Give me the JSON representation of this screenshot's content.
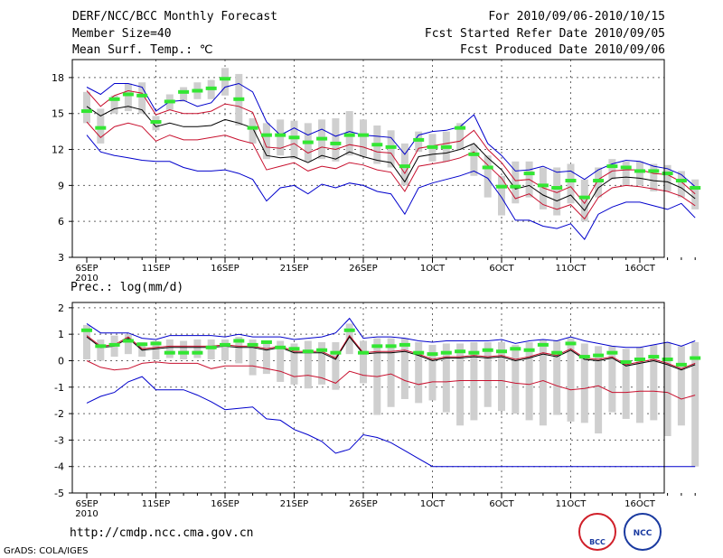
{
  "header": {
    "title": "DERF/NCC/BCC Monthly Forecast",
    "member_size": "Member Size=40",
    "variable": "Mean Surf. Temp.: ℃",
    "period": "For 2010/09/06-2010/10/15",
    "refer_date": "Fcst Started Refer Date 2010/09/05",
    "produced_date": "Fcst Produced Date 2010/09/06"
  },
  "footer": {
    "url": "http://cmdp.ncc.cma.gov.cn",
    "credit": "GrADS: COLA/IGES",
    "logo1_text": "BCC",
    "logo2_text": "NCC"
  },
  "colors": {
    "bar": "#cfcfcf",
    "mean": "#000000",
    "sd": "#c8102e",
    "range": "#0000cc",
    "ensemble": "#33e633"
  },
  "chart_data": [
    {
      "type": "line",
      "title": "Mean Surf. Temp.: ℃",
      "x_labels": [
        "6SEP\n2010",
        "11SEP",
        "16SEP",
        "21SEP",
        "26SEP",
        "1OCT",
        "6OCT",
        "11OCT",
        "16OCT"
      ],
      "x_label_days": [
        1,
        6,
        11,
        16,
        21,
        26,
        31,
        36,
        41
      ],
      "yticks": [
        3,
        6,
        9,
        12,
        15,
        18
      ],
      "ylim": [
        3,
        19.5
      ],
      "series": [
        {
          "name": "max",
          "values": [
            13.2,
            11.8,
            11.5,
            11.3,
            11.1,
            11.0,
            11.0,
            10.5,
            10.2,
            10.2,
            10.3,
            10.0,
            9.5,
            7.7,
            8.8,
            9.0,
            8.3,
            9.1,
            8.8,
            9.2,
            9.0,
            8.5,
            8.3,
            6.6,
            8.8,
            9.2,
            9.5,
            9.8,
            10.2,
            9.6,
            8.0,
            6.1,
            6.1,
            5.6,
            5.4,
            5.8,
            4.5,
            6.6,
            7.2,
            7.6,
            7.6,
            7.3,
            7.0,
            7.5,
            6.3
          ]
        },
        {
          "name": "mean-sd",
          "values": [
            14.3,
            13.0,
            13.9,
            14.2,
            13.9,
            12.7,
            13.2,
            12.8,
            12.8,
            13.0,
            13.2,
            12.8,
            12.5,
            10.3,
            10.6,
            10.9,
            10.2,
            10.6,
            10.4,
            10.9,
            10.7,
            10.3,
            10.1,
            8.5,
            10.6,
            10.8,
            11.0,
            11.3,
            11.8,
            10.7,
            9.6,
            7.9,
            8.3,
            7.4,
            7.0,
            7.4,
            6.2,
            8.0,
            8.8,
            9.0,
            8.9,
            8.7,
            8.5,
            8.1,
            7.3
          ]
        },
        {
          "name": "ens-mean",
          "values": [
            15.6,
            14.8,
            15.4,
            15.6,
            15.3,
            13.9,
            14.2,
            13.9,
            13.9,
            14.0,
            14.5,
            14.2,
            13.8,
            11.5,
            11.3,
            11.4,
            10.9,
            11.5,
            11.2,
            11.8,
            11.4,
            11.1,
            10.9,
            9.3,
            11.4,
            11.6,
            11.7,
            12.0,
            12.5,
            11.3,
            10.3,
            8.7,
            9.0,
            8.2,
            7.7,
            8.2,
            6.9,
            8.8,
            9.6,
            9.7,
            9.6,
            9.4,
            9.3,
            8.8,
            7.9
          ]
        },
        {
          "name": "mean+sd",
          "values": [
            16.9,
            15.6,
            16.5,
            16.9,
            16.7,
            14.9,
            15.3,
            15.0,
            15.0,
            15.2,
            15.8,
            15.6,
            15.1,
            12.2,
            12.1,
            12.5,
            11.7,
            12.2,
            12.0,
            12.4,
            12.2,
            11.8,
            11.7,
            10.0,
            12.1,
            12.3,
            12.5,
            12.7,
            13.6,
            12.0,
            10.9,
            9.4,
            9.5,
            8.8,
            8.4,
            8.9,
            7.5,
            9.5,
            10.2,
            10.3,
            10.3,
            10.0,
            9.9,
            9.3,
            8.3
          ]
        },
        {
          "name": "min",
          "values": [
            17.2,
            16.6,
            17.5,
            17.5,
            17.2,
            15.2,
            16.0,
            16.1,
            15.6,
            15.9,
            17.2,
            17.5,
            16.8,
            14.3,
            13.2,
            13.8,
            13.2,
            13.7,
            13.1,
            13.5,
            13.2,
            13.1,
            13.0,
            11.6,
            13.2,
            13.5,
            13.6,
            13.9,
            14.9,
            12.5,
            11.5,
            10.2,
            10.3,
            10.6,
            10.1,
            10.2,
            9.5,
            10.3,
            10.8,
            11.1,
            11.0,
            10.6,
            10.4,
            9.9,
            8.9
          ]
        },
        {
          "name": "member",
          "values": [
            15.2,
            13.8,
            16.2,
            16.6,
            16.5,
            14.3,
            16.0,
            16.8,
            16.9,
            17.1,
            17.9,
            16.2,
            13.8,
            13.2,
            13.2,
            13.0,
            12.6,
            12.9,
            12.5,
            13.2,
            13.2,
            12.4,
            12.2,
            10.6,
            12.8,
            12.2,
            12.2,
            13.8,
            11.6,
            10.5,
            8.9,
            8.9,
            10.0,
            9.0,
            8.8,
            9.4,
            8.0,
            9.4,
            10.6,
            10.5,
            10.2,
            10.2,
            10.0,
            9.4,
            8.8
          ]
        },
        {
          "name": "box-high",
          "values": [
            16.8,
            15.4,
            16.5,
            17.5,
            17.6,
            14.8,
            16.6,
            17.2,
            17.6,
            17.8,
            18.8,
            18.3,
            14.6,
            14.2,
            14.5,
            14.4,
            14.2,
            14.5,
            14.6,
            15.2,
            14.5,
            14.0,
            13.6,
            12.5,
            13.5,
            13.3,
            13.5,
            14.2,
            12.4,
            11.5,
            9.8,
            11.0,
            11.0,
            10.5,
            10.5,
            10.8,
            9.5,
            10.5,
            11.2,
            11.0,
            11.0,
            10.8,
            10.7,
            10.2,
            9.5
          ]
        },
        {
          "name": "box-low",
          "values": [
            14.2,
            12.5,
            15.0,
            15.2,
            15.0,
            13.6,
            15.3,
            16.0,
            16.2,
            16.2,
            16.5,
            14.0,
            12.5,
            11.2,
            11.5,
            11.2,
            11.0,
            11.2,
            11.0,
            11.5,
            11.4,
            10.8,
            10.5,
            9.0,
            11.8,
            11.0,
            11.0,
            12.0,
            9.8,
            8.0,
            6.5,
            7.5,
            8.0,
            7.0,
            6.5,
            7.5,
            6.0,
            8.0,
            9.5,
            9.0,
            9.0,
            8.5,
            8.5,
            8.0,
            7.0
          ]
        }
      ]
    },
    {
      "type": "line",
      "title": "Prec.: log(mm/d)",
      "x_labels": [
        "6SEP\n2010",
        "11SEP",
        "16SEP",
        "21SEP",
        "26SEP",
        "1OCT",
        "6OCT",
        "11OCT",
        "16OCT"
      ],
      "x_label_days": [
        1,
        6,
        11,
        16,
        21,
        26,
        31,
        36,
        41
      ],
      "yticks": [
        -5,
        -4,
        -3,
        -2,
        -1,
        0,
        1,
        2
      ],
      "ylim": [
        -5,
        2.2
      ],
      "series": [
        {
          "name": "min",
          "values": [
            -1.6,
            -1.35,
            -1.2,
            -0.8,
            -0.6,
            -1.1,
            -1.1,
            -1.1,
            -1.3,
            -1.55,
            -1.85,
            -1.8,
            -1.75,
            -2.2,
            -2.25,
            -2.6,
            -2.8,
            -3.05,
            -3.5,
            -3.35,
            -2.8,
            -2.9,
            -3.1,
            -3.4,
            -3.7,
            -4.0,
            -4.0,
            -4.0,
            -4.0,
            -4.0,
            -4.0,
            -4.0,
            -4.0,
            -4.0,
            -4.0,
            -4.0,
            -4.0,
            -4.0,
            -4.0,
            -4.0,
            -4.0,
            -4.0,
            -4.0,
            -4.0,
            -4.0
          ]
        },
        {
          "name": "mean-sd",
          "values": [
            0.0,
            -0.25,
            -0.35,
            -0.3,
            -0.1,
            -0.05,
            -0.1,
            -0.1,
            -0.1,
            -0.3,
            -0.2,
            -0.2,
            -0.2,
            -0.3,
            -0.4,
            -0.6,
            -0.55,
            -0.65,
            -0.85,
            -0.4,
            -0.55,
            -0.6,
            -0.5,
            -0.75,
            -0.9,
            -0.8,
            -0.8,
            -0.75,
            -0.75,
            -0.75,
            -0.75,
            -0.85,
            -0.9,
            -0.75,
            -0.95,
            -1.1,
            -1.05,
            -0.95,
            -1.2,
            -1.2,
            -1.15,
            -1.15,
            -1.2,
            -1.45,
            -1.3
          ]
        },
        {
          "name": "ens-mean",
          "values": [
            0.9,
            0.5,
            0.55,
            0.85,
            0.4,
            0.45,
            0.5,
            0.5,
            0.5,
            0.5,
            0.55,
            0.5,
            0.5,
            0.4,
            0.5,
            0.3,
            0.3,
            0.3,
            0.05,
            0.9,
            0.25,
            0.3,
            0.3,
            0.35,
            0.2,
            0.0,
            0.1,
            0.1,
            0.15,
            0.1,
            0.15,
            0.0,
            0.1,
            0.25,
            0.15,
            0.4,
            0.05,
            0.0,
            0.1,
            -0.2,
            -0.1,
            0.0,
            -0.15,
            -0.35,
            -0.15
          ]
        },
        {
          "name": "mean+sd",
          "values": [
            0.95,
            0.55,
            0.6,
            0.9,
            0.45,
            0.5,
            0.55,
            0.55,
            0.55,
            0.55,
            0.6,
            0.55,
            0.55,
            0.45,
            0.55,
            0.35,
            0.35,
            0.35,
            0.1,
            0.95,
            0.3,
            0.35,
            0.35,
            0.4,
            0.25,
            0.05,
            0.15,
            0.15,
            0.2,
            0.15,
            0.2,
            0.05,
            0.15,
            0.3,
            0.2,
            0.45,
            0.1,
            0.05,
            0.15,
            -0.15,
            -0.05,
            0.05,
            -0.1,
            -0.3,
            -0.1
          ]
        },
        {
          "name": "max",
          "values": [
            1.4,
            1.05,
            1.05,
            1.05,
            0.85,
            0.8,
            0.95,
            0.95,
            0.95,
            0.95,
            0.9,
            1.0,
            0.9,
            0.9,
            0.9,
            0.8,
            0.85,
            0.9,
            1.05,
            1.6,
            0.85,
            0.9,
            0.9,
            0.85,
            0.75,
            0.7,
            0.75,
            0.75,
            0.75,
            0.75,
            0.8,
            0.65,
            0.75,
            0.8,
            0.75,
            0.9,
            0.75,
            0.65,
            0.55,
            0.5,
            0.5,
            0.6,
            0.7,
            0.55,
            0.75
          ]
        },
        {
          "name": "member",
          "values": [
            1.15,
            0.55,
            0.6,
            0.75,
            0.62,
            0.65,
            0.3,
            0.3,
            0.3,
            0.5,
            0.6,
            0.75,
            0.6,
            0.7,
            0.5,
            0.45,
            0.35,
            0.4,
            0.3,
            1.15,
            0.3,
            0.55,
            0.55,
            0.6,
            0.3,
            0.25,
            0.3,
            0.35,
            0.3,
            0.4,
            0.35,
            0.45,
            0.4,
            0.6,
            0.3,
            0.65,
            0.15,
            0.2,
            0.3,
            -0.05,
            0.05,
            0.15,
            0.05,
            -0.15,
            0.1
          ]
        },
        {
          "name": "box-high",
          "values": [
            1.35,
            0.8,
            0.95,
            1.0,
            0.7,
            0.75,
            0.8,
            0.75,
            0.8,
            0.8,
            0.8,
            0.9,
            0.8,
            0.75,
            0.75,
            0.65,
            0.75,
            0.7,
            0.7,
            1.4,
            0.75,
            0.85,
            0.85,
            0.85,
            0.7,
            0.6,
            0.65,
            0.65,
            0.7,
            0.7,
            0.7,
            0.6,
            0.7,
            0.8,
            0.75,
            0.85,
            0.65,
            0.55,
            0.55,
            0.45,
            0.5,
            0.6,
            0.7,
            0.55,
            0.7
          ]
        },
        {
          "name": "box-low",
          "values": [
            0.05,
            0.0,
            0.15,
            0.25,
            0.15,
            0.05,
            0.1,
            0.05,
            0.1,
            0.05,
            0.0,
            -0.1,
            -0.55,
            -0.5,
            -0.8,
            -0.9,
            -1.05,
            -0.9,
            -1.1,
            0.25,
            -0.85,
            -2.05,
            -1.75,
            -1.45,
            -1.6,
            -1.5,
            -1.95,
            -2.45,
            -2.25,
            -1.75,
            -1.9,
            -2.0,
            -2.25,
            -2.45,
            -2.05,
            -2.3,
            -2.35,
            -2.75,
            -1.95,
            -2.2,
            -2.35,
            -2.25,
            -2.85,
            -2.45,
            -4.0
          ]
        }
      ]
    }
  ]
}
